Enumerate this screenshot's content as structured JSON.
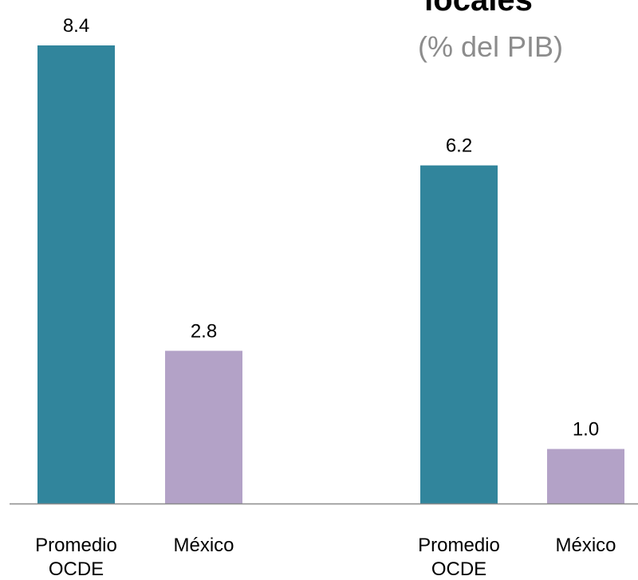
{
  "chart_data": {
    "type": "bar",
    "title_fragment": "locales",
    "subtitle": "(% del PIB)",
    "groups": [
      {
        "bars": [
          {
            "category": "Promedio OCDE",
            "value": 8.4,
            "label": "8.4",
            "color": "#31859c"
          },
          {
            "category": "México",
            "value": 2.8,
            "label": "2.8",
            "color": "#b3a2c7"
          }
        ]
      },
      {
        "bars": [
          {
            "category": "Promedio OCDE",
            "value": 6.2,
            "label": "6.2",
            "color": "#31859c"
          },
          {
            "category": "México",
            "value": 1.0,
            "label": "1.0",
            "color": "#b3a2c7"
          }
        ]
      }
    ],
    "ylim": [
      0,
      8.4
    ],
    "grid": false,
    "legend": "none"
  }
}
